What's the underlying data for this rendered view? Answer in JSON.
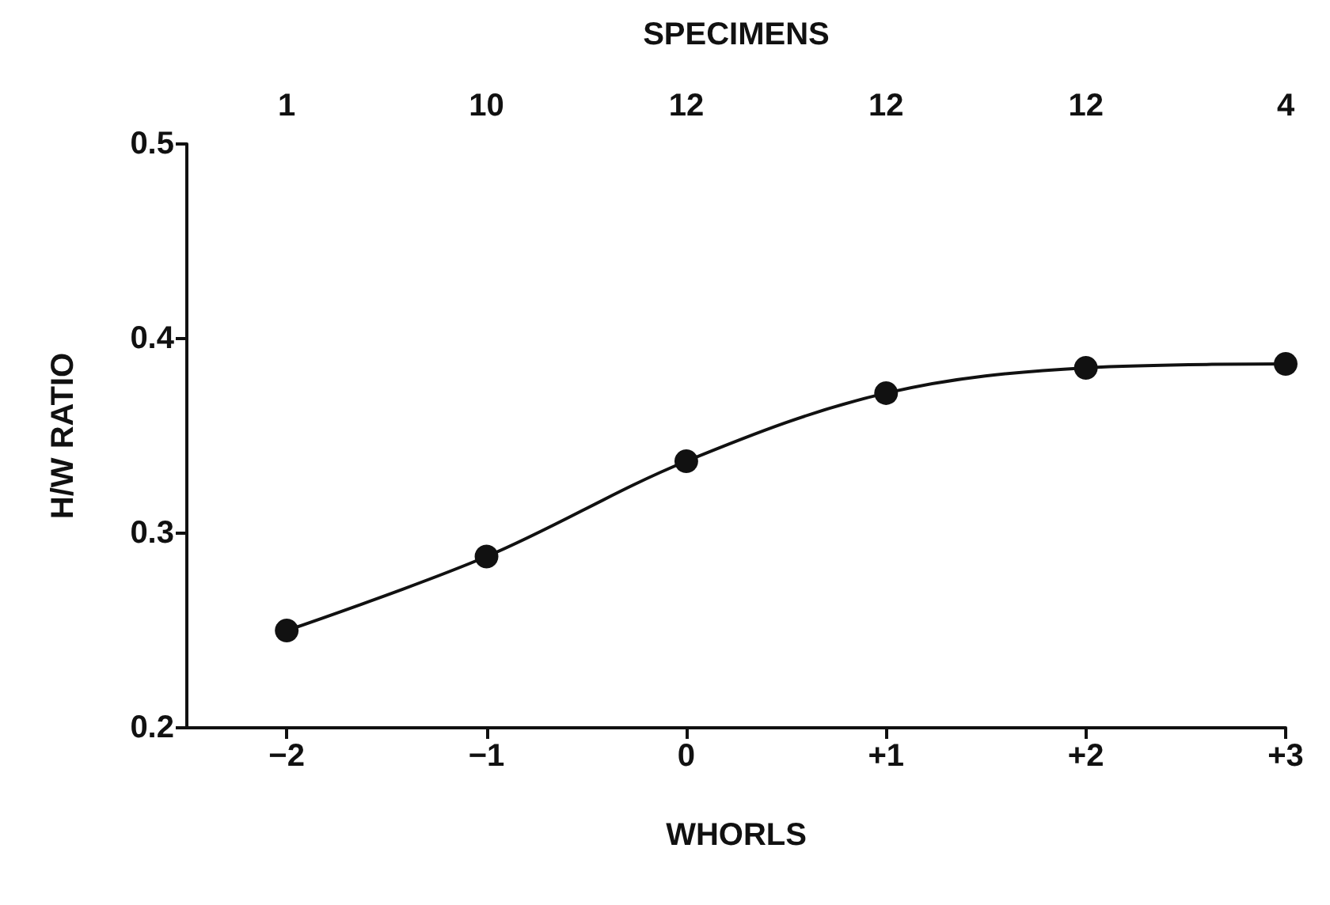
{
  "chart_data": {
    "type": "line",
    "xlabel": "WHORLS",
    "ylabel": "H/W RATIO",
    "annotations": [
      "SPECIMENS",
      "1",
      "10",
      "12",
      "12",
      "12",
      "4"
    ],
    "x": [
      -2,
      -1,
      0,
      1,
      2,
      3
    ],
    "series": [
      {
        "color": "#111111",
        "values": [
          0.25,
          0.288,
          0.337,
          0.372,
          0.385,
          0.387
        ]
      }
    ],
    "xlim": [
      -2.5,
      3
    ],
    "xticks": [
      {
        "value": -2,
        "label": "−2"
      },
      {
        "value": -1,
        "label": "−1"
      },
      0,
      {
        "value": 1,
        "label": "+1"
      },
      {
        "value": 2,
        "label": "+2"
      },
      {
        "value": 3,
        "label": "+3"
      }
    ],
    "ylim": [
      0.2,
      0.5
    ],
    "yticks": [
      0.2,
      0.3,
      0.4,
      0.5
    ],
    "grid": false,
    "marker": "circle",
    "line_style": "solid"
  }
}
